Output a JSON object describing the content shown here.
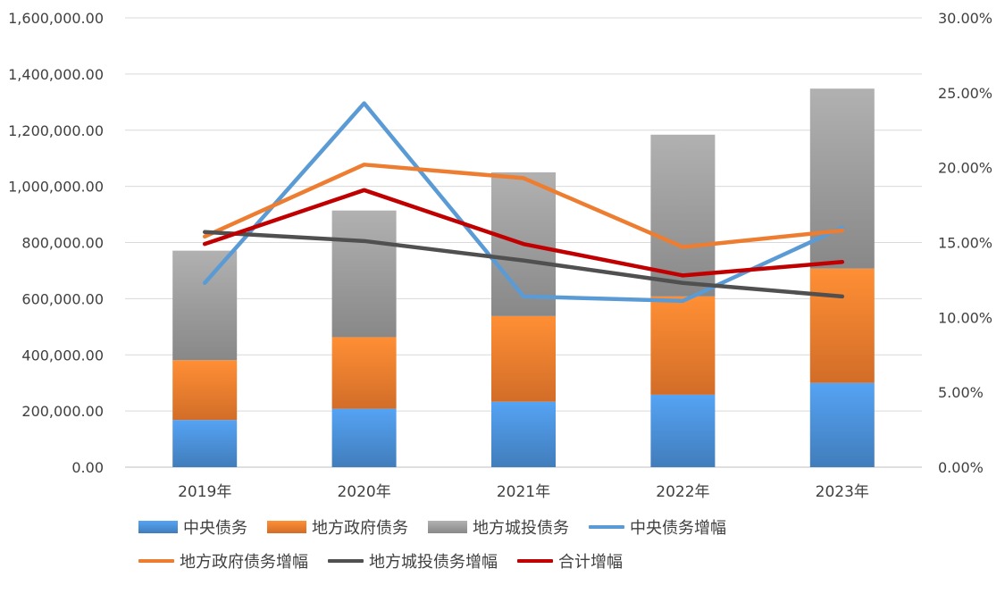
{
  "chart_data": {
    "type": "bar",
    "subtype": "stacked bar with line overlay (secondary axis)",
    "categories": [
      "2019年",
      "2020年",
      "2021年",
      "2022年",
      "2023年"
    ],
    "bar_series": [
      {
        "name": "中央债务",
        "values": [
          168000,
          208000,
          233000,
          258000,
          300000
        ],
        "color": "#4A8ED4"
      },
      {
        "name": "地方政府债务",
        "values": [
          213000,
          255000,
          305000,
          350000,
          407000
        ],
        "color": "#EF7C2E"
      },
      {
        "name": "地方城投债务",
        "values": [
          390000,
          451000,
          512000,
          576000,
          641000
        ],
        "color": "#9A9A9A"
      }
    ],
    "line_series": [
      {
        "name": "中央债务增幅",
        "values": [
          12.3,
          24.3,
          11.4,
          11.1,
          16.0
        ],
        "color": "#5B9BD5"
      },
      {
        "name": "地方政府债务增幅",
        "values": [
          15.4,
          20.2,
          19.3,
          14.7,
          15.8
        ],
        "color": "#ED7D31"
      },
      {
        "name": "地方城投债务增幅",
        "values": [
          15.7,
          15.1,
          13.8,
          12.3,
          11.4
        ],
        "color": "#505050"
      },
      {
        "name": "合计增幅",
        "values": [
          14.9,
          18.5,
          14.9,
          12.8,
          13.7
        ],
        "color": "#C00000"
      }
    ],
    "y_left": {
      "min": 0,
      "max": 1600000,
      "ticks": [
        "0.00",
        "200,000.00",
        "400,000.00",
        "600,000.00",
        "800,000.00",
        "1,000,000.00",
        "1,200,000.00",
        "1,400,000.00",
        "1,600,000.00"
      ]
    },
    "y_right": {
      "min": 0,
      "max": 30,
      "ticks": [
        "0.00%",
        "5.00%",
        "10.00%",
        "15.00%",
        "20.00%",
        "25.00%",
        "30.00%"
      ]
    },
    "grid": true,
    "legend_position": "bottom"
  }
}
